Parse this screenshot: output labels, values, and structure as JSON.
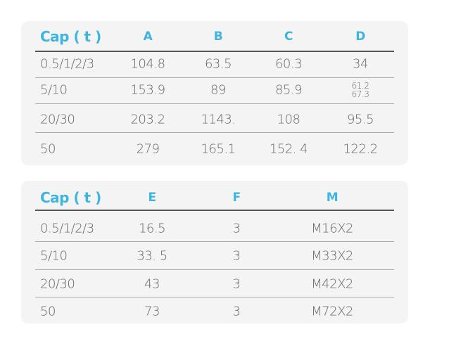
{
  "tables": [
    {
      "header": [
        "Cap ( t )",
        "A",
        "B",
        "C",
        "D"
      ],
      "rows": [
        [
          "0.5/1/2/3",
          "104.8",
          "63.5",
          "60.3",
          "34"
        ],
        [
          "5/10",
          "153.9",
          "89",
          "85.9",
          [
            "61.2",
            "67.3"
          ]
        ],
        [
          "20/30",
          "203.2",
          "1143.",
          "108",
          "95.5"
        ],
        [
          "50",
          "279",
          "165.1",
          "152. 4",
          "122.2"
        ]
      ]
    },
    {
      "header": [
        "Cap ( t )",
        "E",
        "F",
        "M"
      ],
      "rows": [
        [
          "0.5/1/2/3",
          "16.5",
          "3",
          "M16X2"
        ],
        [
          "5/10",
          "33. 5",
          "3",
          "M33X2"
        ],
        [
          "20/30",
          "43",
          "3",
          "M42X2"
        ],
        [
          "50",
          "73",
          "3",
          "M72X2"
        ]
      ]
    }
  ]
}
